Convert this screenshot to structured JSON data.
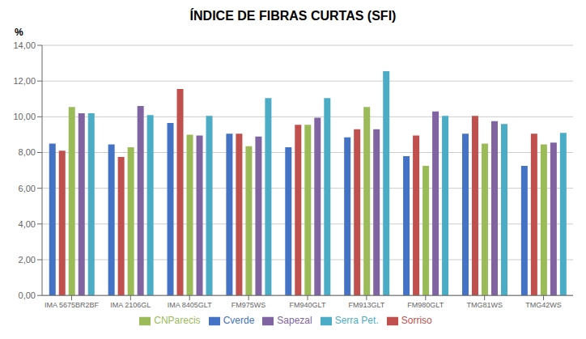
{
  "chart_data": {
    "type": "bar",
    "title": "ÍNDICE DE FIBRAS CURTAS (SFI)",
    "ylabel": "%",
    "categories": [
      "IMA 5675BR2BF",
      "IMA 2106GL",
      "IMA 8405GLT",
      "FM975WS",
      "FM940GLT",
      "FM913GLT",
      "FM980GLT",
      "TMG81WS",
      "TMG42WS"
    ],
    "series": [
      {
        "name": "Cverde",
        "color": "#4472C4",
        "values": [
          8.5,
          8.45,
          9.65,
          9.05,
          8.3,
          8.85,
          7.8,
          9.05,
          7.25
        ]
      },
      {
        "name": "Sorriso",
        "color": "#C0504D",
        "values": [
          8.1,
          7.75,
          11.55,
          9.05,
          9.55,
          9.3,
          8.95,
          10.05,
          9.05
        ]
      },
      {
        "name": "CNParecis",
        "color": "#9BBB59",
        "values": [
          10.55,
          8.3,
          9.0,
          8.35,
          9.55,
          10.55,
          7.25,
          8.5,
          8.45
        ]
      },
      {
        "name": "Sapezal",
        "color": "#8064A2",
        "values": [
          10.2,
          10.6,
          8.95,
          8.9,
          9.95,
          9.3,
          10.3,
          9.75,
          8.55
        ]
      },
      {
        "name": "Serra Pet.",
        "color": "#4BACC6",
        "values": [
          10.2,
          10.1,
          10.05,
          11.05,
          11.05,
          12.55,
          10.05,
          9.6,
          9.1
        ]
      }
    ],
    "ylim": [
      0,
      14.0
    ],
    "yticks": [
      {
        "value": 0.0,
        "label": "0,00"
      },
      {
        "value": 2.0,
        "label": "2,00"
      },
      {
        "value": 4.0,
        "label": "4,00"
      },
      {
        "value": 6.0,
        "label": "6,00"
      },
      {
        "value": 8.0,
        "label": "8,00"
      },
      {
        "value": 10.0,
        "label": "10,00"
      },
      {
        "value": 12.0,
        "label": "12,00"
      },
      {
        "value": 14.0,
        "label": "14,00"
      }
    ],
    "grid": true,
    "legend": "bottom"
  }
}
